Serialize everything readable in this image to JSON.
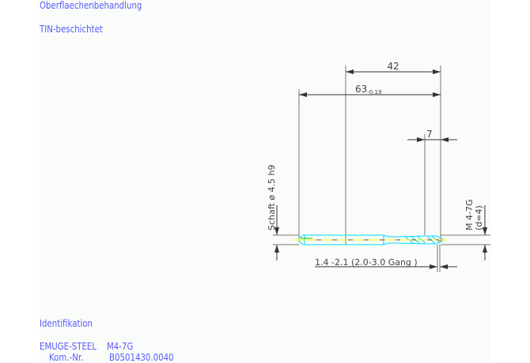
{
  "header": {
    "surface_label": "Oberflaechenbehandlung",
    "surface_value": "TIN-beschichtet"
  },
  "drawing": {
    "dim_42": "42",
    "dim_63": "63",
    "dim_63_tol": "-0.19",
    "dim_7": "7",
    "shaft_label": "Schaft  ø 4.5  h9",
    "thread_label": "M  4-7G",
    "thread_depth": "(d=4)",
    "chamfer_label": "1.4 -2.1 (2.0-3.0 Gang  )",
    "colors": {
      "dimension": "#555555",
      "outline": "#00d8ff",
      "centerline": "#ffff00",
      "text": "#5a5aff"
    }
  },
  "footer": {
    "id_label": "Identifikation",
    "product": "EMUGE-STEEL    M4-7G",
    "kom_label": "Kom.-Nr.",
    "kom_value": "B0501430.0040"
  }
}
